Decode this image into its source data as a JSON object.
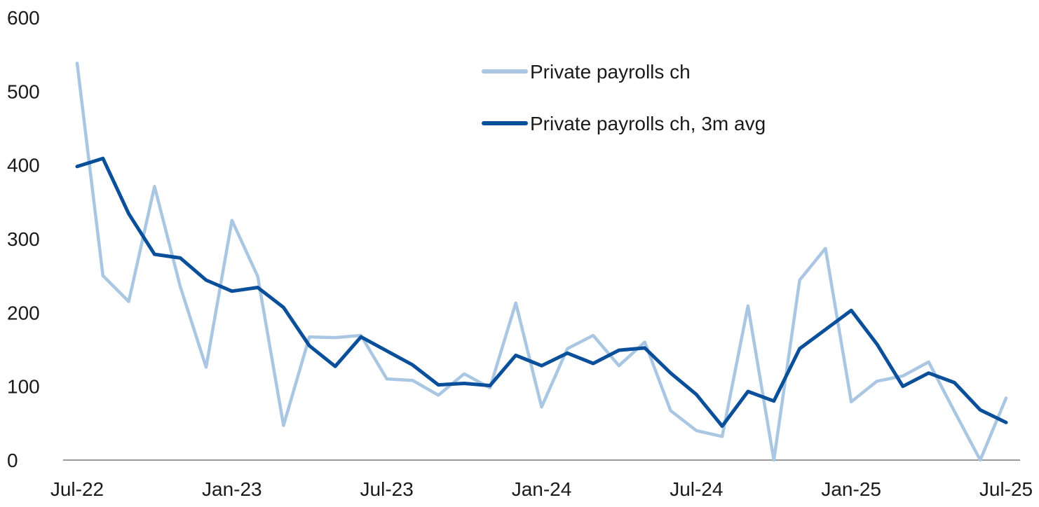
{
  "chart_data": {
    "type": "line",
    "x": [
      "2022-07",
      "2022-08",
      "2022-09",
      "2022-10",
      "2022-11",
      "2022-12",
      "2023-01",
      "2023-02",
      "2023-03",
      "2023-04",
      "2023-05",
      "2023-06",
      "2023-07",
      "2023-08",
      "2023-09",
      "2023-10",
      "2023-11",
      "2023-12",
      "2024-01",
      "2024-02",
      "2024-03",
      "2024-04",
      "2024-05",
      "2024-06",
      "2024-07",
      "2024-08",
      "2024-09",
      "2024-10",
      "2024-11",
      "2024-12",
      "2025-01",
      "2025-02",
      "2025-03",
      "2025-04",
      "2025-05",
      "2025-06",
      "2025-07"
    ],
    "x_tick_labels": [
      {
        "x": "2022-07",
        "label": "Jul-22"
      },
      {
        "x": "2023-01",
        "label": "Jan-23"
      },
      {
        "x": "2023-07",
        "label": "Jul-23"
      },
      {
        "x": "2024-01",
        "label": "Jan-24"
      },
      {
        "x": "2024-07",
        "label": "Jul-24"
      },
      {
        "x": "2025-01",
        "label": "Jan-25"
      },
      {
        "x": "2025-07",
        "label": "Jul-25"
      }
    ],
    "y_ticks": [
      0,
      100,
      200,
      300,
      400,
      500,
      600
    ],
    "ylim": [
      0,
      600
    ],
    "grid": false,
    "legend_position": "top-center",
    "series": [
      {
        "name": "Private payrolls ch",
        "color": "#a9c6e2",
        "values": [
          538,
          250,
          215,
          371,
          235,
          126,
          325,
          249,
          47,
          167,
          166,
          169,
          110,
          108,
          88,
          117,
          98,
          213,
          72,
          151,
          169,
          128,
          160,
          67,
          40,
          32,
          209,
          0,
          244,
          287,
          79,
          107,
          114,
          133,
          66,
          0,
          84
        ]
      },
      {
        "name": "Private payrolls ch, 3m avg",
        "color": "#0a4f9a",
        "values": [
          398,
          409,
          334,
          279,
          274,
          244,
          229,
          234,
          207,
          155,
          127,
          167,
          148,
          129,
          102,
          104,
          101,
          142,
          128,
          145,
          131,
          149,
          152,
          118,
          89,
          46,
          93,
          80,
          151,
          177,
          203,
          157,
          100,
          118,
          105,
          68,
          51
        ]
      }
    ]
  }
}
